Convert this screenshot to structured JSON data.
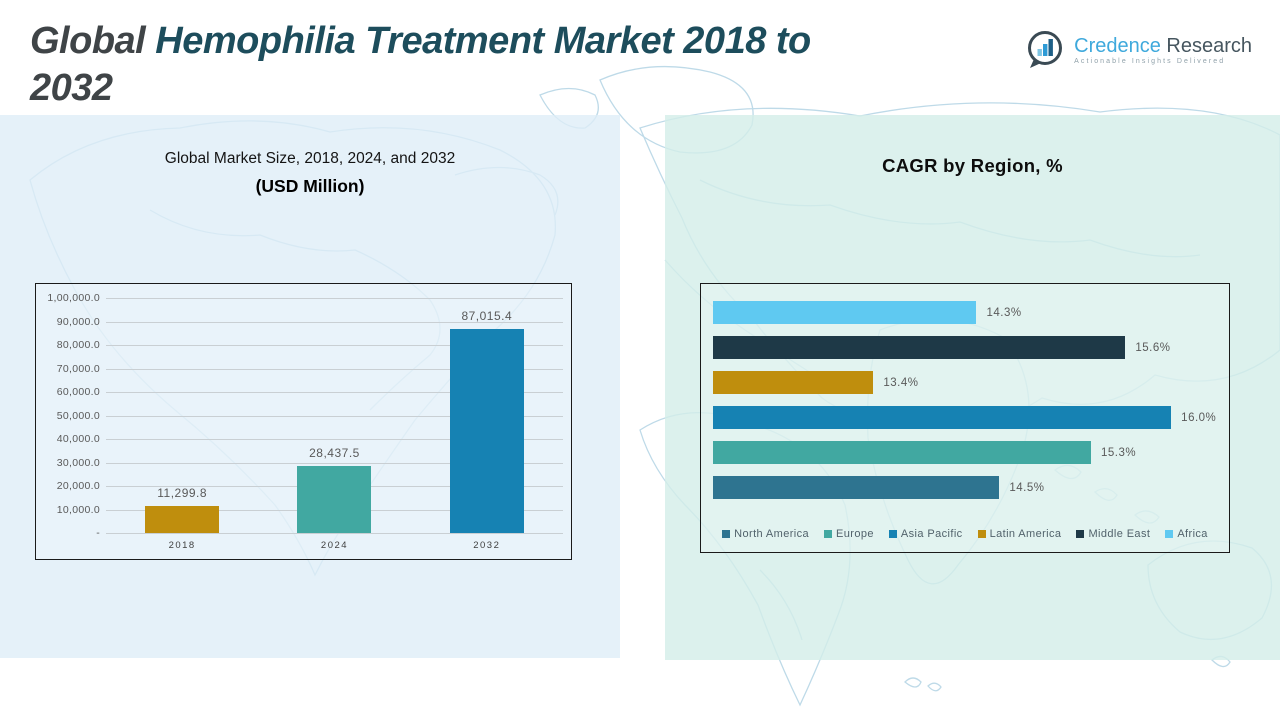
{
  "header": {
    "title_part1": "Global ",
    "title_part2": "Hemophilia Treatment Market 2018 to",
    "title_part3": "2032"
  },
  "logo": {
    "brand_first": "Credence",
    "brand_second": " Research",
    "tagline": "Actionable Insights Delivered"
  },
  "colors": {
    "gold": "#BF8E0D",
    "teal": "#41A8A1",
    "blue": "#1682B3",
    "slate": "#2E7490",
    "navy": "#1E3947",
    "sky": "#5FC9F1",
    "title_teal": "#1D4D5C",
    "title_gray": "#3F4447"
  },
  "chart_data": [
    {
      "type": "bar",
      "title": "Global Market Size, 2018, 2024, and 2032",
      "subtitle": "(USD Million)",
      "categories": [
        "2018",
        "2024",
        "2032"
      ],
      "values": [
        11299.8,
        28437.5,
        87015.4
      ],
      "value_labels": [
        "11,299.8",
        "28,437.5",
        "87,015.4"
      ],
      "bar_colors": [
        "#BF8E0D",
        "#41A8A1",
        "#1682B3"
      ],
      "xlabel": "",
      "ylabel": "",
      "ylim": [
        0,
        100000
      ],
      "ytick_labels_top_to_bottom": [
        "1,00,000.0",
        "90,000.0",
        "80,000.0",
        "70,000.0",
        "60,000.0",
        "50,000.0",
        "40,000.0",
        "30,000.0",
        "20,000.0",
        "10,000.0",
        "-"
      ],
      "grid": true,
      "legend_position": "none"
    },
    {
      "type": "bar",
      "orientation": "horizontal",
      "title": "CAGR by Region, %",
      "bar_order_top_to_bottom": [
        "Africa",
        "Middle East",
        "Latin America",
        "Asia Pacific",
        "Europe",
        "North America"
      ],
      "series": [
        {
          "name": "North America",
          "value": 14.5,
          "label": "14.5%",
          "color": "#2E7490"
        },
        {
          "name": "Europe",
          "value": 15.3,
          "label": "15.3%",
          "color": "#41A8A1"
        },
        {
          "name": "Asia Pacific",
          "value": 16.0,
          "label": "16.0%",
          "color": "#1682B3"
        },
        {
          "name": "Latin America",
          "value": 13.4,
          "label": "13.4%",
          "color": "#BF8E0D"
        },
        {
          "name": "Middle East",
          "value": 15.6,
          "label": "15.6%",
          "color": "#1E3947"
        },
        {
          "name": "Africa",
          "value": 14.3,
          "label": "14.3%",
          "color": "#5FC9F1"
        }
      ],
      "xlim": [
        12,
        16.4
      ],
      "grid": false,
      "legend_position": "bottom",
      "legend_order": [
        "North America",
        "Europe",
        "Asia Pacific",
        "Latin America",
        "Middle East",
        "Africa"
      ]
    }
  ]
}
